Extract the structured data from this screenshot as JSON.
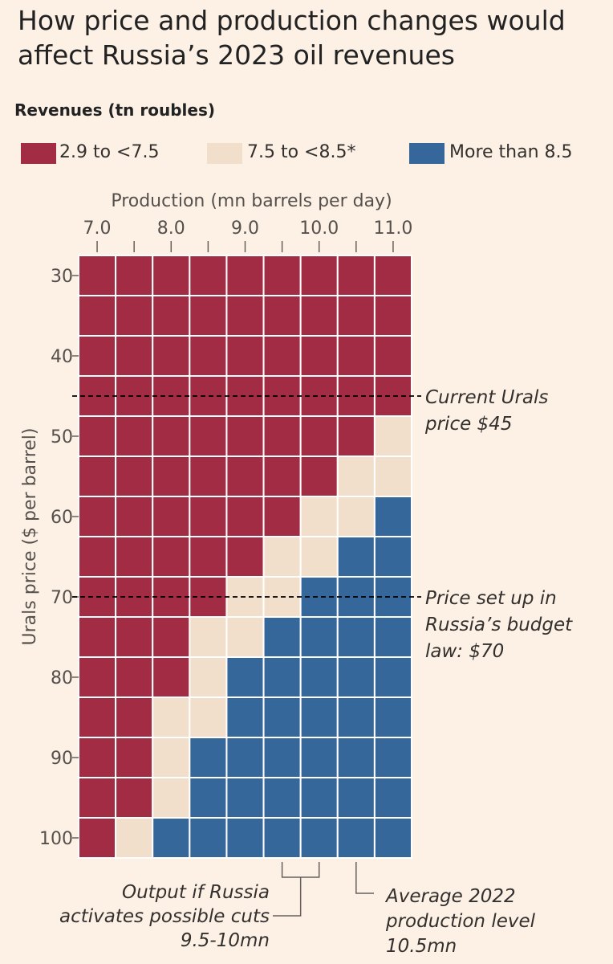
{
  "title": "How price and production changes would affect Russia’s 2023 oil revenues",
  "subtitle": "Revenues (tn roubles)",
  "legend": [
    {
      "label": "2.9 to <7.5",
      "color": "#a12c44"
    },
    {
      "label": "7.5 to <8.5*",
      "color": "#f2dfcb"
    },
    {
      "label": "More than 8.5",
      "color": "#36679a"
    }
  ],
  "chart_data": {
    "type": "heatmap",
    "xlabel": "Production (mn barrels per day)",
    "ylabel": "Urals price ($ per barrel)",
    "x_tick_labels": [
      "7.0",
      "8.0",
      "9.0",
      "10.0",
      "11.0"
    ],
    "y_tick_labels": [
      "30",
      "40",
      "50",
      "60",
      "70",
      "80",
      "90",
      "100"
    ],
    "x": [
      7.0,
      7.5,
      8.0,
      8.5,
      9.0,
      9.5,
      10.0,
      10.5,
      11.0
    ],
    "y": [
      30,
      35,
      40,
      45,
      50,
      55,
      60,
      65,
      70,
      75,
      80,
      85,
      90,
      95,
      100
    ],
    "categories": [
      "2.9 to <7.5",
      "7.5 to <8.5*",
      "More than 8.5"
    ],
    "values": [
      [
        0,
        0,
        0,
        0,
        0,
        0,
        0,
        0,
        0
      ],
      [
        0,
        0,
        0,
        0,
        0,
        0,
        0,
        0,
        0
      ],
      [
        0,
        0,
        0,
        0,
        0,
        0,
        0,
        0,
        0
      ],
      [
        0,
        0,
        0,
        0,
        0,
        0,
        0,
        0,
        0
      ],
      [
        0,
        0,
        0,
        0,
        0,
        0,
        0,
        0,
        1
      ],
      [
        0,
        0,
        0,
        0,
        0,
        0,
        0,
        1,
        1
      ],
      [
        0,
        0,
        0,
        0,
        0,
        0,
        1,
        1,
        2
      ],
      [
        0,
        0,
        0,
        0,
        0,
        1,
        1,
        2,
        2
      ],
      [
        0,
        0,
        0,
        0,
        1,
        1,
        2,
        2,
        2
      ],
      [
        0,
        0,
        0,
        1,
        1,
        2,
        2,
        2,
        2
      ],
      [
        0,
        0,
        0,
        1,
        2,
        2,
        2,
        2,
        2
      ],
      [
        0,
        0,
        1,
        1,
        2,
        2,
        2,
        2,
        2
      ],
      [
        0,
        0,
        1,
        2,
        2,
        2,
        2,
        2,
        2
      ],
      [
        0,
        0,
        1,
        2,
        2,
        2,
        2,
        2,
        2
      ],
      [
        0,
        1,
        2,
        2,
        2,
        2,
        2,
        2,
        2
      ]
    ],
    "reference_lines": [
      {
        "price": 45,
        "label": [
          "Current Urals",
          "price $45"
        ]
      },
      {
        "price": 70,
        "label": [
          "Price set up in",
          "Russia’s budget",
          "law: $70"
        ]
      }
    ],
    "annotations": [
      {
        "x_range": [
          9.5,
          10.0
        ],
        "label": [
          "Output if Russia",
          "activates possible cuts",
          "9.5-10mn"
        ]
      },
      {
        "x": 10.5,
        "label": [
          "Average 2022",
          "production level",
          "10.5mn"
        ]
      }
    ]
  }
}
